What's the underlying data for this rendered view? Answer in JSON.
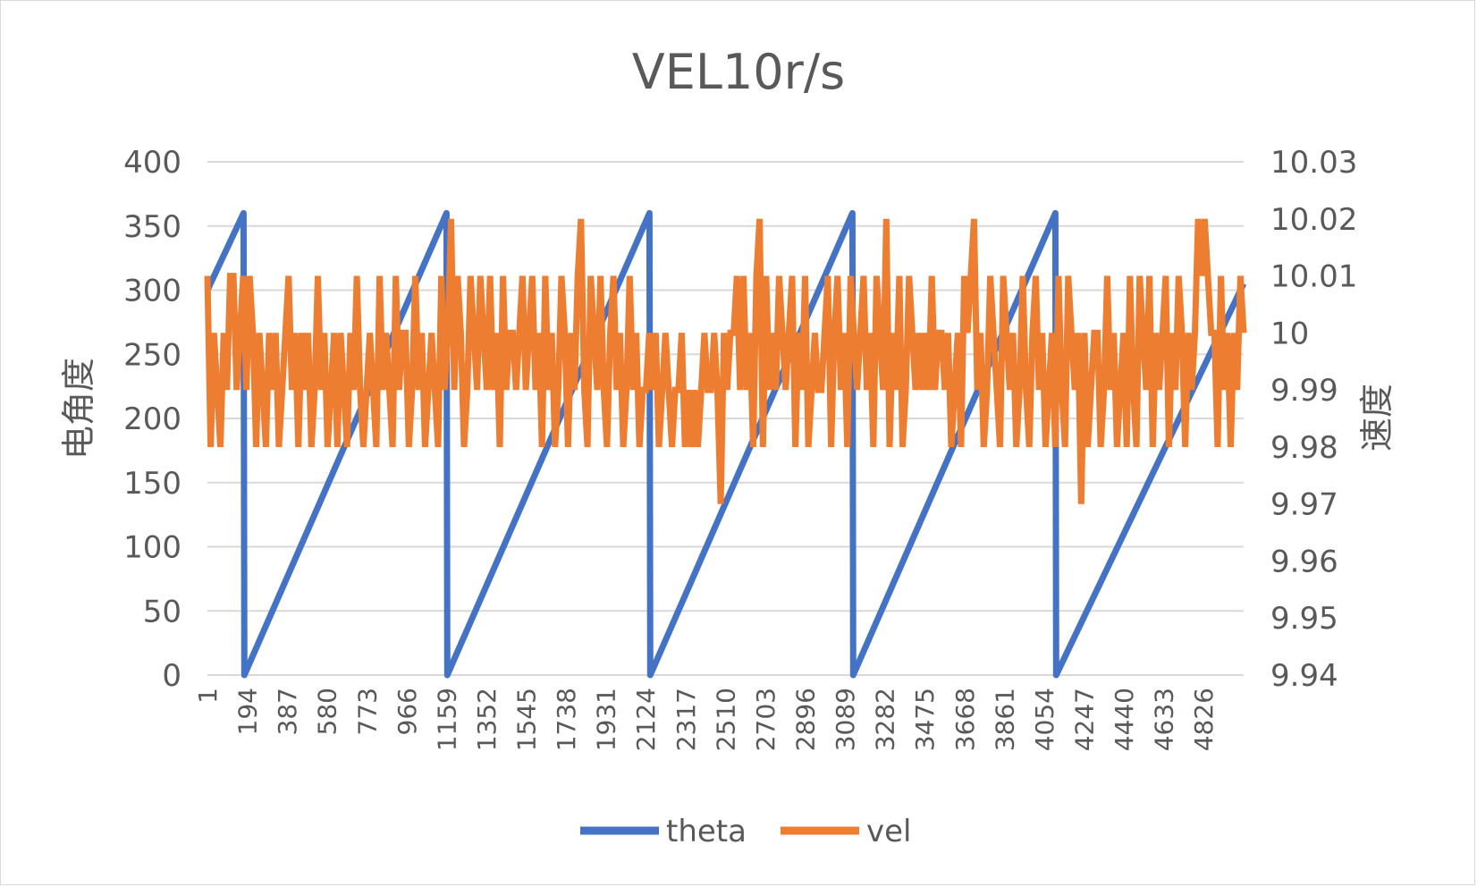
{
  "chart_data": {
    "type": "line",
    "title": "VEL10r/s",
    "ylabel_left": "电角度",
    "ylabel_right": "速度",
    "xlabel": "",
    "x_range": [
      1,
      5020
    ],
    "x_ticks": [
      "1",
      "194",
      "387",
      "580",
      "773",
      "966",
      "1159",
      "1352",
      "1545",
      "1738",
      "1931",
      "2124",
      "2317",
      "2510",
      "2703",
      "2896",
      "3089",
      "3282",
      "3475",
      "3668",
      "3861",
      "4054",
      "4247",
      "4440",
      "4633",
      "4826"
    ],
    "ylim_left": [
      0,
      400
    ],
    "yticks_left": [
      "0",
      "50",
      "100",
      "150",
      "200",
      "250",
      "300",
      "350",
      "400"
    ],
    "ylim_right": [
      9.94,
      10.03
    ],
    "yticks_right": [
      "9.94",
      "9.95",
      "9.96",
      "9.97",
      "9.98",
      "9.99",
      "10",
      "10.01",
      "10.02",
      "10.03"
    ],
    "grid": true,
    "legend_position": "bottom",
    "series": [
      {
        "name": "theta",
        "axis": "left",
        "color": "#4472c4",
        "points": [
          [
            1,
            300
          ],
          [
            176,
            360
          ],
          [
            180,
            0
          ],
          [
            1159,
            360
          ],
          [
            1163,
            0
          ],
          [
            2142,
            360
          ],
          [
            2146,
            0
          ],
          [
            3125,
            360
          ],
          [
            3129,
            0
          ],
          [
            4108,
            360
          ],
          [
            4112,
            0
          ],
          [
            5020,
            305
          ]
        ]
      },
      {
        "name": "vel",
        "axis": "right",
        "color": "#ed7d31",
        "base": 9.99,
        "values": [
          10.01,
          9.98,
          10.0,
          9.99,
          9.98,
          10.0,
          9.99,
          10.01,
          10.01,
          9.99,
          10.0,
          10.01,
          9.99,
          10.01,
          10.0,
          9.98,
          10.0,
          9.99,
          9.98,
          10.0,
          9.99,
          10.0,
          9.98,
          9.99,
          10.0,
          10.01,
          9.99,
          10.0,
          9.98,
          10.0,
          9.99,
          10.0,
          9.98,
          9.99,
          10.01,
          9.99,
          10.0,
          9.98,
          9.99,
          10.0,
          9.98,
          10.0,
          9.99,
          9.98,
          10.0,
          9.99,
          10.01,
          9.99,
          9.98,
          9.99,
          10.0,
          9.99,
          9.98,
          10.01,
          9.99,
          10.0,
          9.99,
          9.98,
          10.01,
          9.99,
          10.0,
          10.0,
          9.98,
          9.99,
          10.01,
          9.99,
          10.0,
          9.98,
          9.99,
          10.0,
          9.99,
          9.98,
          10.01,
          9.99,
          10.0,
          10.02,
          9.99,
          10.01,
          10.0,
          9.98,
          9.99,
          10.01,
          10.0,
          9.99,
          10.01,
          10.0,
          9.99,
          10.01,
          9.99,
          10.0,
          9.98,
          10.01,
          9.99,
          10.0,
          10.0,
          9.99,
          10.0,
          10.01,
          9.99,
          10.0,
          10.01,
          9.99,
          10.0,
          9.98,
          10.01,
          9.99,
          10.0,
          9.98,
          9.99,
          10.01,
          10.0,
          9.98,
          10.0,
          9.99,
          10.01,
          10.02,
          9.99,
          9.98,
          10.01,
          10.0,
          9.99,
          10.01,
          9.99,
          9.98,
          10.0,
          10.01,
          9.99,
          10.0,
          9.98,
          9.99,
          10.01,
          9.99,
          10.0,
          9.98,
          9.99,
          9.99,
          10.0,
          9.99,
          10.0,
          9.98,
          9.99,
          10.0,
          9.99,
          9.98,
          9.99,
          9.99,
          10.0,
          9.98,
          9.99,
          9.98,
          9.99,
          9.98,
          9.99,
          10.0,
          9.99,
          9.99,
          10.0,
          9.99,
          9.97,
          10.0,
          9.99,
          10.0,
          10.0,
          10.01,
          9.99,
          10.01,
          9.99,
          10.0,
          9.98,
          10.01,
          10.02,
          9.98,
          10.01,
          9.99,
          10.0,
          9.99,
          10.01,
          10.0,
          9.99,
          10.0,
          10.01,
          9.98,
          10.0,
          9.99,
          10.01,
          9.98,
          9.99,
          10.0,
          9.99,
          9.99,
          10.0,
          10.01,
          9.98,
          10.0,
          10.01,
          9.99,
          10.0,
          9.98,
          10.01,
          10.0,
          9.99,
          10.0,
          10.01,
          9.99,
          10.0,
          9.98,
          10.01,
          10.0,
          9.99,
          10.02,
          9.98,
          10.0,
          9.99,
          10.01,
          9.98,
          9.99,
          10.01,
          10.0,
          9.99,
          10.0,
          9.99,
          10.0,
          9.99,
          10.01,
          9.99,
          10.0,
          10.0,
          9.99,
          10.0,
          9.98,
          9.99,
          10.0,
          9.98,
          10.01,
          10.0,
          10.01,
          10.02,
          9.99,
          10.0,
          9.98,
          9.99,
          10.01,
          10.0,
          9.99,
          9.98,
          10.01,
          10.0,
          9.99,
          10.0,
          9.98,
          9.99,
          10.01,
          9.99,
          9.98,
          10.0,
          10.01,
          9.99,
          10.0,
          9.98,
          9.99,
          10.0,
          9.98,
          10.01,
          9.99,
          9.98,
          10.01,
          10.0,
          9.99,
          10.0,
          9.97,
          10.0,
          9.98,
          9.99,
          10.0,
          10.0,
          9.98,
          9.99,
          10.01,
          9.99,
          10.0,
          9.98,
          9.99,
          10.0,
          9.98,
          10.01,
          9.99,
          9.98,
          10.01,
          10.0,
          9.99,
          10.01,
          9.98,
          10.0,
          9.99,
          10.0,
          10.01,
          9.98,
          10.0,
          9.99,
          10.01,
          10.0,
          9.98,
          10.0,
          9.99,
          10.0,
          10.02,
          10.01,
          10.02,
          10.01,
          10.0,
          10.0,
          9.98,
          10.01,
          9.99,
          10.0,
          9.98,
          10.0,
          9.99,
          10.01,
          10.0
        ]
      }
    ]
  }
}
